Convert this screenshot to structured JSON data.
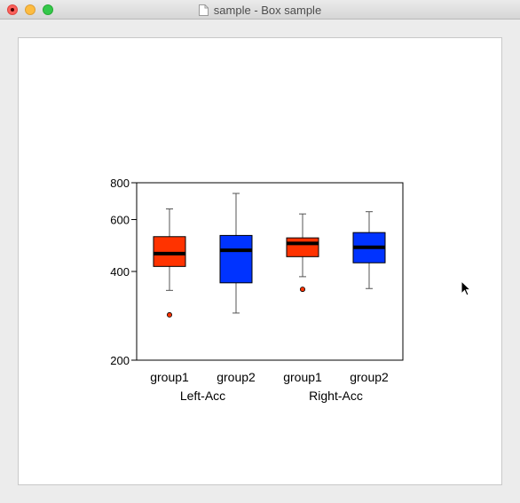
{
  "window": {
    "title": "sample - Box sample"
  },
  "icons": {
    "document": "document-icon",
    "cursor": "mouse-pointer-icon"
  },
  "chart_data": {
    "type": "box",
    "title": "",
    "xlabel": "",
    "ylabel": "",
    "y_scale": "log",
    "ylim": [
      200,
      800
    ],
    "yticks": [
      200,
      400,
      600,
      800
    ],
    "grid": false,
    "groups": [
      {
        "label": "Left-Acc",
        "categories": [
          "group1",
          "group2"
        ]
      },
      {
        "label": "Right-Acc",
        "categories": [
          "group1",
          "group2"
        ]
      }
    ],
    "boxes": [
      {
        "group": "Left-Acc",
        "category": "group1",
        "color": "#ff3300",
        "whisker_low": 345,
        "q1": 416,
        "median": 460,
        "q3": 525,
        "whisker_high": 652,
        "outliers": [
          285
        ]
      },
      {
        "group": "Left-Acc",
        "category": "group2",
        "color": "#0033ff",
        "whisker_low": 289,
        "q1": 366,
        "median": 472,
        "q3": 530,
        "whisker_high": 736,
        "outliers": []
      },
      {
        "group": "Right-Acc",
        "category": "group1",
        "color": "#ff3300",
        "whisker_low": 384,
        "q1": 449,
        "median": 498,
        "q3": 520,
        "whisker_high": 627,
        "outliers": [
          348
        ]
      },
      {
        "group": "Right-Acc",
        "category": "group2",
        "color": "#0033ff",
        "whisker_low": 350,
        "q1": 428,
        "median": 483,
        "q3": 542,
        "whisker_high": 638,
        "outliers": []
      }
    ]
  }
}
